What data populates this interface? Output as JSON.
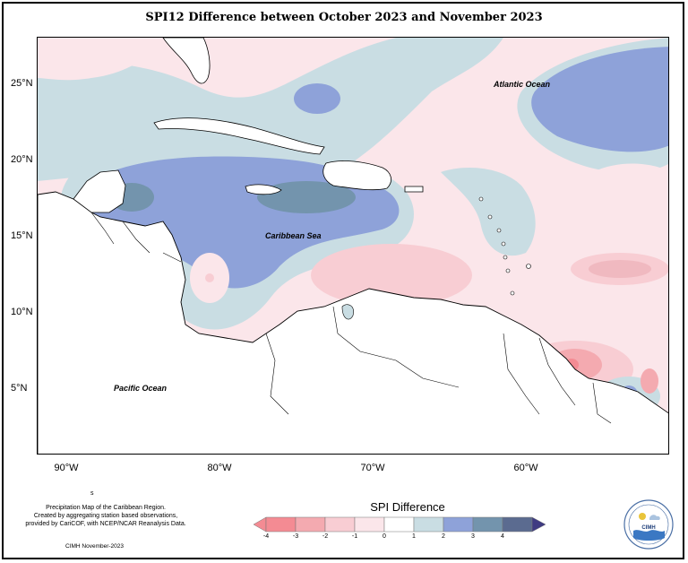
{
  "title": "SPI12 Difference between October 2023 and November 2023",
  "map": {
    "region": "Caribbean",
    "latitude_labels": [
      "25°N",
      "20°N",
      "15°N",
      "10°N",
      "5°N"
    ],
    "longitude_labels": [
      "90°W",
      "80°W",
      "70°W",
      "60°W"
    ],
    "ocean_labels": {
      "atlantic": "Atlantic Ocean",
      "caribbean": "Caribbean Sea",
      "pacific": "Pacific Ocean"
    },
    "colors": {
      "land": "#ffffff",
      "coast": "#000000"
    }
  },
  "legend": {
    "title": "SPI Difference",
    "ticks": [
      "-4",
      "-3",
      "-2",
      "-1",
      "0",
      "1",
      "2",
      "3",
      "4"
    ],
    "colors": [
      "#f48b93",
      "#f4aab0",
      "#f8cdd3",
      "#fbe6ea",
      "#ffffff",
      "#c9dde3",
      "#8ea2d9",
      "#7394ad",
      "#5b6b90",
      "#3f3b82"
    ]
  },
  "credits": {
    "line1": "Precipitation Map of the Caribbean Region.",
    "line2": "Created by aggregating station based observations,",
    "line3": "provided by CariCOF, with NCEP/NCAR Reanalysis Data.",
    "date_line": "CIMH November-2023",
    "mark": "s"
  },
  "logo": {
    "text": "CIMH",
    "icon": "cimh-logo-icon"
  }
}
